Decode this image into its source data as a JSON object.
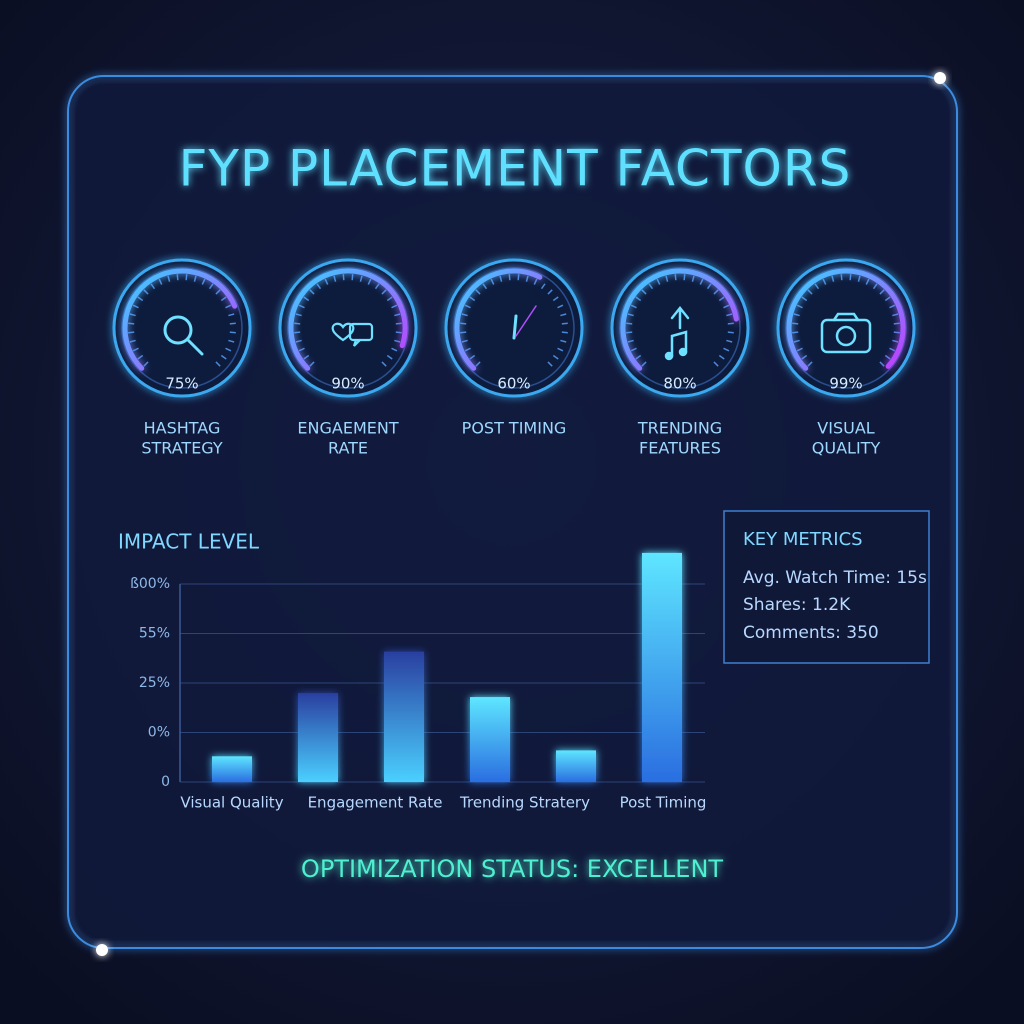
{
  "title": "FYP PLACEMENT FACTORS",
  "gauges": {
    "type": "gauge",
    "labels": [
      [
        "HASHTAG",
        "STRATEGY"
      ],
      [
        "ENGAEMENT",
        "RATE"
      ],
      [
        "POST TIMING"
      ],
      [
        "TRENDING",
        "FEATURES"
      ],
      [
        "VISUAL",
        "QUALITY"
      ]
    ],
    "values": [
      75,
      90,
      60,
      80,
      99
    ],
    "value_labels": [
      "75%",
      "90%",
      "60%",
      "80%",
      "99%"
    ]
  },
  "chart_data": {
    "type": "bar",
    "title": "IMPACT LEVEL",
    "y_axis_labels": [
      "ß00%",
      "55%",
      "25%",
      "0%",
      "0"
    ],
    "categories": [
      "Visual Quality",
      null,
      "Engagement Rate",
      null,
      "Trending Stratery",
      "Post Timing"
    ],
    "values": [
      13,
      45,
      66,
      43,
      16,
      116
    ],
    "ylim": [
      0,
      120
    ]
  },
  "key_metrics": {
    "title": "KEY METRICS",
    "items": [
      "Avg. Watch Time: 15s",
      "Shares: 1.2K",
      "Comments: 350"
    ]
  },
  "status": "OPTIMIZATION STATUS: EXCELLENT"
}
